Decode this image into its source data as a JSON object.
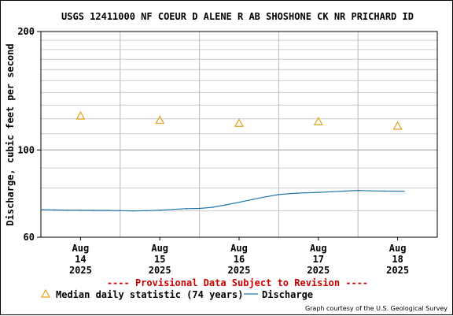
{
  "chart_data": {
    "type": "line",
    "title": "USGS 12411000 NF COEUR D ALENE R AB SHOSHONE CK NR PRICHARD ID",
    "xlabel": "",
    "ylabel": "Discharge, cubic feet per second",
    "yscale": "log",
    "ylim": [
      60,
      200
    ],
    "ytick_labels": [
      "60",
      "100",
      "200"
    ],
    "xlim": [
      "2025-08-14T00:00",
      "2025-08-19T00:00"
    ],
    "x_ticks": [
      {
        "month": "Aug",
        "day": "14",
        "year": "2025",
        "x": "2025-08-14T12:00"
      },
      {
        "month": "Aug",
        "day": "15",
        "year": "2025",
        "x": "2025-08-15T12:00"
      },
      {
        "month": "Aug",
        "day": "16",
        "year": "2025",
        "x": "2025-08-16T12:00"
      },
      {
        "month": "Aug",
        "day": "17",
        "year": "2025",
        "x": "2025-08-17T12:00"
      },
      {
        "month": "Aug",
        "day": "18",
        "year": "2025",
        "x": "2025-08-18T12:00"
      }
    ],
    "grid": true,
    "series": [
      {
        "name": "Discharge",
        "color": "#1f77a8",
        "x": [
          "2025-08-14T00:00",
          "2025-08-14T04:00",
          "2025-08-14T08:00",
          "2025-08-14T12:00",
          "2025-08-14T16:00",
          "2025-08-14T20:00",
          "2025-08-15T00:00",
          "2025-08-15T04:00",
          "2025-08-15T08:00",
          "2025-08-15T12:00",
          "2025-08-15T16:00",
          "2025-08-15T20:00",
          "2025-08-16T00:00",
          "2025-08-16T04:00",
          "2025-08-16T08:00",
          "2025-08-16T12:00",
          "2025-08-16T16:00",
          "2025-08-16T20:00",
          "2025-08-17T00:00",
          "2025-08-17T04:00",
          "2025-08-17T08:00",
          "2025-08-17T12:00",
          "2025-08-17T16:00",
          "2025-08-17T20:00",
          "2025-08-18T00:00",
          "2025-08-18T04:00",
          "2025-08-18T08:00",
          "2025-08-18T14:00"
        ],
        "y": [
          70.5,
          70.4,
          70.3,
          70.3,
          70.2,
          70.2,
          70.1,
          70.0,
          70.1,
          70.3,
          70.6,
          70.9,
          71.0,
          71.5,
          72.5,
          73.6,
          74.8,
          76.0,
          77.0,
          77.5,
          77.8,
          78.0,
          78.3,
          78.6,
          78.9,
          78.7,
          78.6,
          78.5
        ]
      },
      {
        "name": "Median daily statistic (74 years)",
        "color": "#e6a21a",
        "marker": "triangle",
        "x": [
          "2025-08-14T12:00",
          "2025-08-15T12:00",
          "2025-08-16T12:00",
          "2025-08-17T12:00",
          "2025-08-18T12:00"
        ],
        "y": [
          122,
          119,
          117,
          118,
          115
        ]
      }
    ],
    "legend": {
      "placement": "bottom",
      "provisional": "---- Provisional Data Subject to Revision ----",
      "median_label": "Median daily statistic (74 years)",
      "discharge_label": "Discharge"
    },
    "credit": "Graph courtesy of the U.S. Geological Survey"
  }
}
